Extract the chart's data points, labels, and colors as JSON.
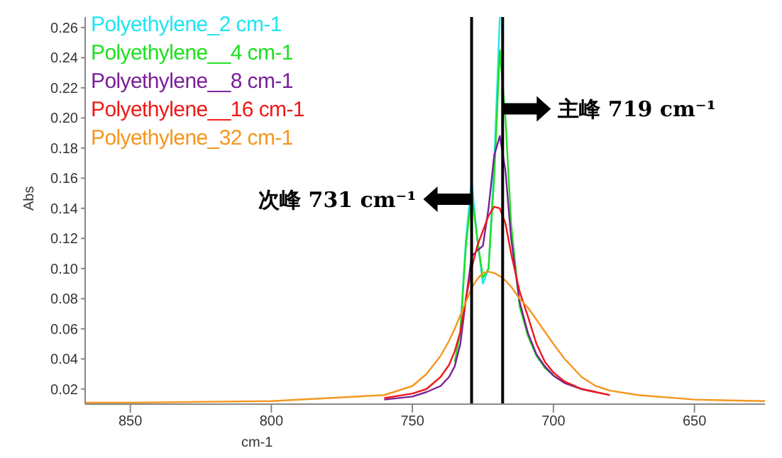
{
  "chart_data": {
    "type": "line",
    "xlabel": "cm-1",
    "ylabel": "Abs",
    "x": [
      866,
      850,
      800,
      760,
      750,
      745,
      740,
      737,
      735,
      733,
      731,
      729,
      727,
      725,
      723,
      721,
      719,
      717,
      715,
      712,
      709,
      706,
      703,
      700,
      696,
      690,
      685,
      680,
      670,
      650,
      625
    ],
    "series": [
      {
        "name": "Polyethylene_2 cm-1",
        "color": "#22e5f0",
        "values": [
          null,
          null,
          null,
          null,
          null,
          null,
          null,
          null,
          null,
          0.06,
          0.12,
          0.158,
          0.12,
          0.09,
          0.1,
          0.17,
          0.267,
          null,
          null,
          null,
          null,
          null,
          null,
          null,
          null,
          null,
          null,
          null,
          null,
          null,
          null
        ]
      },
      {
        "name": "Polyethylene__4 cm-1",
        "color": "#1fe01f",
        "values": [
          null,
          null,
          null,
          null,
          null,
          null,
          null,
          null,
          0.038,
          0.058,
          0.115,
          0.15,
          0.12,
          0.094,
          0.1,
          0.16,
          0.245,
          0.2,
          0.13,
          0.075,
          0.055,
          0.042,
          0.034,
          0.029,
          0.024,
          null,
          null,
          null,
          null,
          null,
          null
        ]
      },
      {
        "name": "Polyethylene__8 cm-1",
        "color": "#7a1f9a",
        "values": [
          null,
          null,
          null,
          0.013,
          0.015,
          0.018,
          0.022,
          0.028,
          0.035,
          0.05,
          0.08,
          0.108,
          0.112,
          0.115,
          0.14,
          0.175,
          0.188,
          0.165,
          0.12,
          0.078,
          0.057,
          0.043,
          0.035,
          0.029,
          0.024,
          0.02,
          0.018,
          null,
          null,
          null,
          null
        ]
      },
      {
        "name": "Polyethylene__16 cm-1",
        "color": "#f01818",
        "values": [
          null,
          null,
          null,
          0.014,
          0.017,
          0.02,
          0.028,
          0.036,
          0.045,
          0.058,
          0.08,
          0.1,
          0.115,
          0.125,
          0.135,
          0.141,
          0.14,
          0.13,
          0.11,
          0.085,
          0.068,
          0.05,
          0.038,
          0.031,
          0.025,
          0.02,
          0.018,
          0.016,
          null,
          null,
          null
        ]
      },
      {
        "name": "Polyethylene_32 cm-1",
        "color": "#f5961e",
        "values": [
          0.011,
          0.011,
          0.012,
          0.016,
          0.022,
          0.03,
          0.042,
          0.052,
          0.06,
          0.069,
          0.078,
          0.087,
          0.093,
          0.097,
          0.098,
          0.097,
          0.095,
          0.092,
          0.088,
          0.08,
          0.074,
          0.066,
          0.058,
          0.05,
          0.04,
          0.028,
          0.022,
          0.019,
          0.016,
          0.013,
          0.012
        ]
      }
    ],
    "xlim": [
      866,
      625
    ],
    "xticks": [
      850,
      800,
      750,
      700,
      650
    ],
    "ylim": [
      0.01,
      0.267
    ],
    "yticks": [
      {
        "value": 0.02,
        "label": "0.02"
      },
      {
        "value": 0.04,
        "label": "0.04"
      },
      {
        "value": 0.06,
        "label": "0.06"
      },
      {
        "value": 0.08,
        "label": "0.08"
      },
      {
        "value": 0.1,
        "label": "0.10"
      },
      {
        "value": 0.12,
        "label": "0.12"
      },
      {
        "value": 0.14,
        "label": "0.14"
      },
      {
        "value": 0.16,
        "label": "0.16"
      },
      {
        "value": 0.18,
        "label": "0.18"
      },
      {
        "value": 0.2,
        "label": "0.20"
      },
      {
        "value": 0.22,
        "label": "0.22"
      },
      {
        "value": 0.24,
        "label": "0.24"
      },
      {
        "value": 0.26,
        "label": "0.26"
      }
    ],
    "ref_lines": [
      {
        "axis": "x",
        "value": 729,
        "color": "#000000"
      },
      {
        "axis": "x",
        "value": 718,
        "color": "#000000"
      }
    ],
    "annotations": [
      {
        "text": "次峰 731 cm⁻¹",
        "x": 729,
        "y": 0.146
      },
      {
        "text": "主峰 719 cm⁻¹",
        "x": 718,
        "y": 0.206
      }
    ],
    "legend": "top left",
    "marker": "none",
    "line_style": "solid",
    "grid": false
  }
}
